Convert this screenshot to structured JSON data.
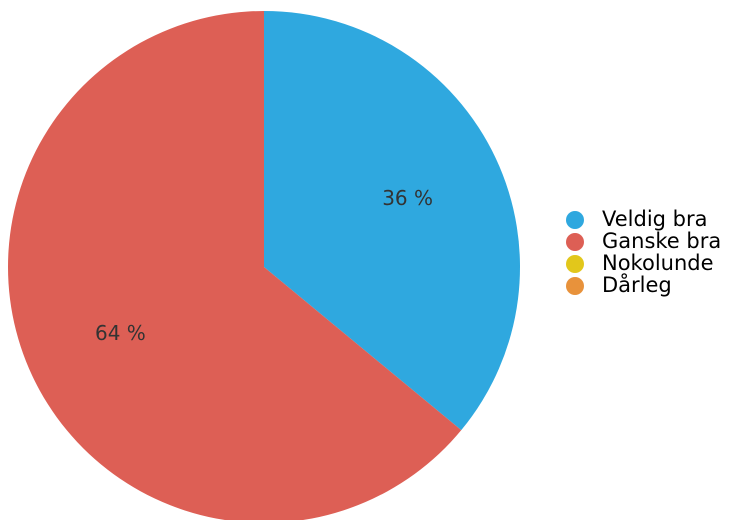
{
  "chart_data": {
    "type": "pie",
    "title": "",
    "slices": [
      {
        "label": "Veldig bra",
        "value": 36,
        "display": "36 %",
        "color": "#2FA8DF"
      },
      {
        "label": "Ganske bra",
        "value": 64,
        "display": "64 %",
        "color": "#DD5F55"
      },
      {
        "label": "Nokolunde",
        "value": 0,
        "display": "",
        "color": "#E2C71B"
      },
      {
        "label": "Dårleg",
        "value": 0,
        "display": "",
        "color": "#E8923B"
      }
    ],
    "legend": {
      "position": "right"
    }
  }
}
